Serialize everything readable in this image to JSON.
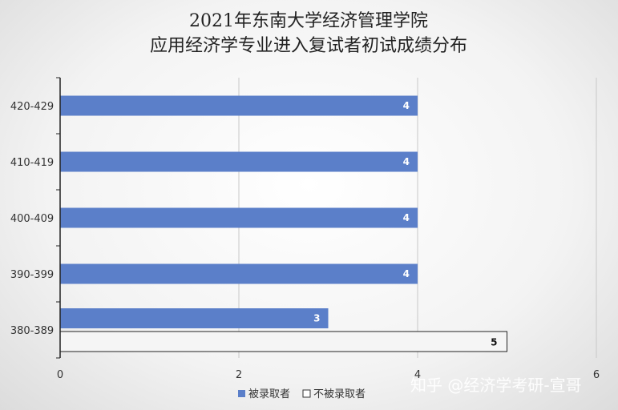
{
  "chart_data": {
    "type": "bar",
    "orientation": "horizontal",
    "title_lines": [
      "2021年东南大学经济管理学院",
      "应用经济学专业进入复试者初试成绩分布"
    ],
    "categories": [
      "420-429",
      "410-419",
      "400-409",
      "390-399",
      "380-389"
    ],
    "series": [
      {
        "name": "被录取者",
        "values": [
          4,
          4,
          4,
          4,
          3
        ],
        "color": "#5b7fc9"
      },
      {
        "name": "不被录取者",
        "values": [
          0,
          0,
          0,
          0,
          5
        ],
        "color": "#f5f5f5"
      }
    ],
    "xlim": [
      0,
      6
    ],
    "xticks": [
      0,
      2,
      4,
      6
    ],
    "grid": true,
    "legend": "bottom"
  },
  "watermark": "知乎 @经济学考研-宣哥"
}
